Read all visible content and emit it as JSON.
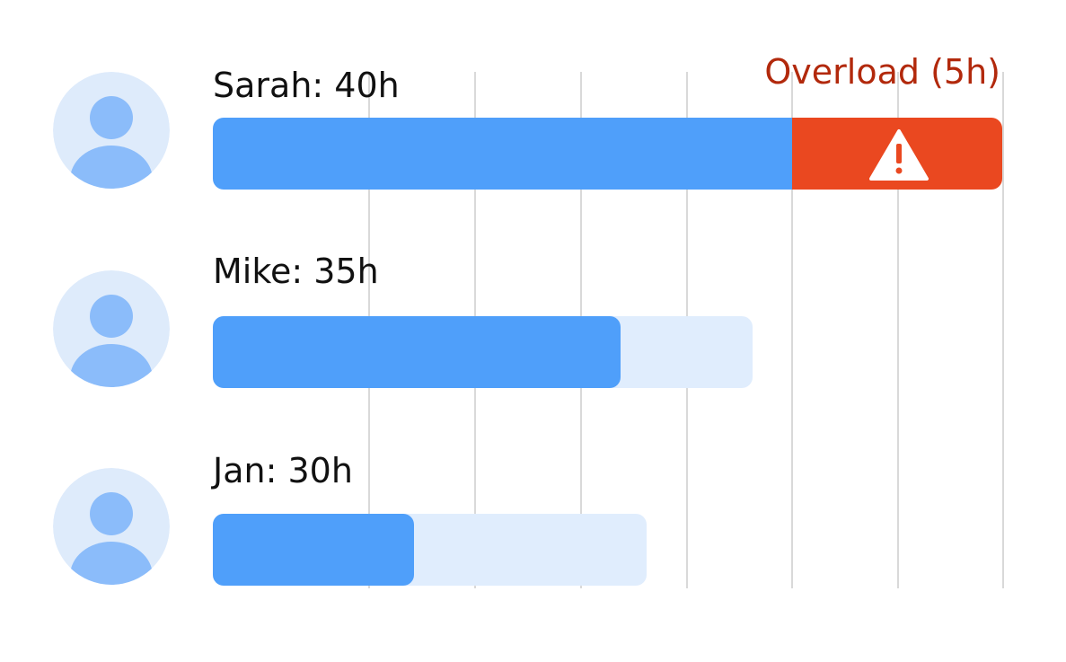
{
  "overload_label": "Overload (5h)",
  "rows": [
    {
      "label": "Sarah: 40h"
    },
    {
      "label": "Mike: 35h"
    },
    {
      "label": "Jan: 30h"
    }
  ]
}
